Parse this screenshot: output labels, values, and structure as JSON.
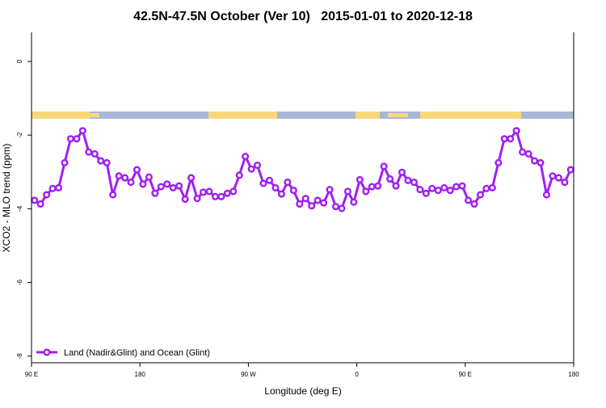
{
  "chart_data": {
    "type": "line",
    "title": "42.5N-47.5N October (Ver 10)   2015-01-01 to 2020-12-18",
    "x_label": "Longitude (deg E)",
    "y_label": "XCO2 - MLO trend (ppm)",
    "x": [
      92.5,
      97.5,
      102.5,
      107.5,
      112.5,
      117.5,
      122.5,
      127.5,
      132.5,
      137.5,
      142.5,
      147.5,
      152.5,
      157.5,
      162.5,
      167.5,
      172.5,
      177.5,
      182.5,
      187.5,
      192.5,
      197.5,
      202.5,
      207.5,
      212.5,
      217.5,
      222.5,
      227.5,
      232.5,
      237.5,
      242.5,
      247.5,
      252.5,
      257.5,
      262.5,
      267.5,
      272.5,
      277.5,
      282.5,
      287.5,
      292.5,
      297.5,
      302.5,
      307.5,
      312.5,
      317.5,
      322.5,
      327.5,
      332.5,
      337.5,
      342.5,
      347.5,
      352.5,
      357.5,
      362.5,
      367.5,
      372.5,
      377.5,
      382.5,
      387.5,
      392.5,
      397.5,
      402.5,
      407.5,
      412.5,
      417.5,
      422.5,
      427.5,
      432.5,
      437.5,
      442.5,
      447.5,
      452.5,
      457.5,
      462.5,
      467.5,
      472.5,
      477.5,
      482.5,
      487.5,
      492.5,
      497.5,
      502.5,
      507.5,
      512.5,
      517.5,
      522.5,
      527.5,
      532.5,
      537.5
    ],
    "series": [
      {
        "name": "Land (Nadir&Glint) and Ocean (Glint)",
        "color": "#a020f0",
        "values": [
          -3.77,
          -3.87,
          -3.62,
          -3.45,
          -3.43,
          -2.75,
          -2.1,
          -2.1,
          -1.88,
          -2.46,
          -2.51,
          -2.7,
          -2.75,
          -3.62,
          -3.11,
          -3.16,
          -3.28,
          -2.94,
          -3.33,
          -3.14,
          -3.58,
          -3.4,
          -3.33,
          -3.43,
          -3.38,
          -3.74,
          -3.16,
          -3.72,
          -3.55,
          -3.53,
          -3.67,
          -3.67,
          -3.58,
          -3.53,
          -3.09,
          -2.58,
          -2.92,
          -2.82,
          -3.31,
          -3.23,
          -3.43,
          -3.6,
          -3.28,
          -3.5,
          -3.87,
          -3.72,
          -3.92,
          -3.77,
          -3.84,
          -3.48,
          -3.94,
          -3.99,
          -3.53,
          -3.82,
          -3.21,
          -3.53,
          -3.4,
          -3.38,
          -2.85,
          -3.19,
          -3.38,
          -3.01,
          -3.23,
          -3.28,
          -3.48,
          -3.58,
          -3.45,
          -3.5,
          -3.43,
          -3.5,
          -3.4,
          -3.38,
          -3.77,
          -3.87,
          -3.62,
          -3.45,
          -3.43,
          -2.75,
          -2.1,
          -2.1,
          -1.88,
          -2.46,
          -2.51,
          -2.7,
          -2.75,
          -3.62,
          -3.11,
          -3.16,
          -3.28,
          -2.94
        ]
      }
    ],
    "xlim": [
      90,
      540
    ],
    "xticks": [
      {
        "value": 90,
        "label": "90 E"
      },
      180,
      {
        "value": 270,
        "label": "90 W"
      },
      {
        "value": 360,
        "label": "0"
      },
      {
        "value": 450,
        "label": "90 E"
      },
      {
        "value": 540,
        "label": "180"
      }
    ],
    "ylim": [
      -8.18,
      0.79
    ],
    "yticks": [
      0,
      -2,
      -4,
      -6,
      -8
    ],
    "legend": "bottom-left"
  }
}
